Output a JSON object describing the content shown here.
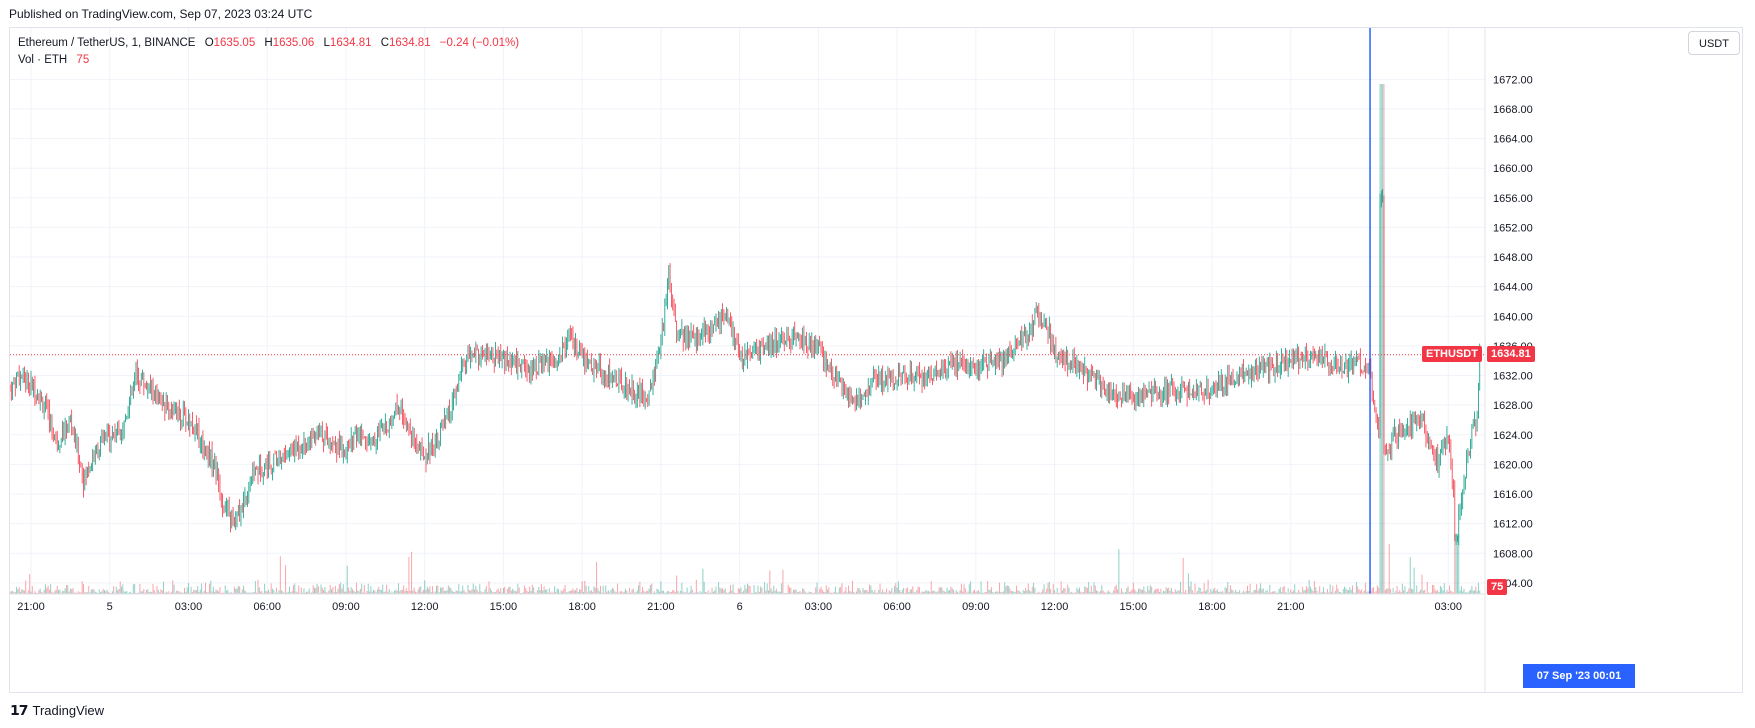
{
  "header": {
    "published": "Published on TradingView.com, Sep 07, 2023 03:24 UTC"
  },
  "legend": {
    "symbol": "Ethereum / TetherUS, 1, BINANCE",
    "o_label": "O",
    "o_value": "1635.05",
    "h_label": "H",
    "h_value": "1635.06",
    "l_label": "L",
    "l_value": "1634.81",
    "c_label": "C",
    "c_value": "1634.81",
    "change": "−0.24 (−0.01%)",
    "vol_label": "Vol · ETH",
    "vol_value": "75"
  },
  "toolbar": {
    "unit": "USDT"
  },
  "tags": {
    "symbol": "ETHUSDT",
    "last_price": "1634.81",
    "volume": "75",
    "crosshair_time": "07 Sep '23   00:01"
  },
  "footer": {
    "brand": "TradingView"
  },
  "colors": {
    "up": "#089981",
    "down": "#f23645",
    "crosshair": "#2962ff",
    "grid": "#f0f3fa"
  },
  "chart_data": {
    "type": "candlestick",
    "interval": "1 minute",
    "y_ticks": [
      "1672.00",
      "1668.00",
      "1664.00",
      "1660.00",
      "1656.00",
      "1652.00",
      "1648.00",
      "1644.00",
      "1640.00",
      "1636.00",
      "1632.00",
      "1628.00",
      "1624.00",
      "1620.00",
      "1616.00",
      "1612.00",
      "1608.00",
      "1604.00"
    ],
    "y_tick_values": [
      1672,
      1668,
      1664,
      1660,
      1656,
      1652,
      1648,
      1644,
      1640,
      1636,
      1632,
      1628,
      1624,
      1620,
      1616,
      1612,
      1608,
      1604
    ],
    "ylim": [
      1602.5,
      1676.5
    ],
    "x_ticks": [
      "21:00",
      "5",
      "03:00",
      "06:00",
      "09:00",
      "12:00",
      "15:00",
      "18:00",
      "21:00",
      "6",
      "03:00",
      "06:00",
      "09:00",
      "12:00",
      "15:00",
      "18:00",
      "21:00",
      "03:00"
    ],
    "x_tick_hours": [
      0,
      3,
      6,
      9,
      12,
      15,
      18,
      21,
      24,
      27,
      30,
      33,
      36,
      39,
      42,
      45,
      48,
      54
    ],
    "x_start": "2023-09-04 20:10",
    "xlim_hours": [
      -0.8,
      55.4
    ],
    "last_price": 1634.81,
    "crosshair_hour": 51.02,
    "price_path": [
      [
        -0.8,
        1630
      ],
      [
        -0.5,
        1632
      ],
      [
        0,
        1631
      ],
      [
        0.5,
        1628
      ],
      [
        1,
        1623
      ],
      [
        1.5,
        1626
      ],
      [
        2,
        1618
      ],
      [
        2.5,
        1622
      ],
      [
        3,
        1624
      ],
      [
        3.5,
        1625
      ],
      [
        4,
        1632
      ],
      [
        4.3,
        1631
      ],
      [
        5,
        1628
      ],
      [
        6,
        1626
      ],
      [
        6.5,
        1623
      ],
      [
        7,
        1620
      ],
      [
        7.3,
        1615
      ],
      [
        7.7,
        1612
      ],
      [
        8,
        1614
      ],
      [
        8.5,
        1619
      ],
      [
        9,
        1620
      ],
      [
        10,
        1622
      ],
      [
        11,
        1624
      ],
      [
        12,
        1622
      ],
      [
        12.5,
        1624
      ],
      [
        13,
        1623
      ],
      [
        13.5,
        1625
      ],
      [
        14,
        1628
      ],
      [
        14.5,
        1624
      ],
      [
        15,
        1621
      ],
      [
        15.5,
        1624
      ],
      [
        16,
        1627
      ],
      [
        16.5,
        1634
      ],
      [
        17,
        1635
      ],
      [
        18,
        1634
      ],
      [
        19,
        1633
      ],
      [
        20,
        1634
      ],
      [
        20.5,
        1637
      ],
      [
        21,
        1634
      ],
      [
        22,
        1632
      ],
      [
        23,
        1630
      ],
      [
        23.5,
        1629
      ],
      [
        24,
        1636
      ],
      [
        24.3,
        1646
      ],
      [
        24.6,
        1638
      ],
      [
        25,
        1637
      ],
      [
        26,
        1638
      ],
      [
        26.5,
        1641
      ],
      [
        27,
        1634
      ],
      [
        28,
        1636
      ],
      [
        29,
        1637
      ],
      [
        30,
        1636
      ],
      [
        30.5,
        1632
      ],
      [
        31,
        1630
      ],
      [
        31.5,
        1628
      ],
      [
        32,
        1631
      ],
      [
        33,
        1632
      ],
      [
        34,
        1632
      ],
      [
        35,
        1633
      ],
      [
        35.5,
        1634
      ],
      [
        36,
        1633
      ],
      [
        37,
        1634
      ],
      [
        37.5,
        1636
      ],
      [
        38,
        1638
      ],
      [
        38.3,
        1640
      ],
      [
        38.7,
        1639
      ],
      [
        39,
        1635
      ],
      [
        40,
        1633
      ],
      [
        41,
        1630
      ],
      [
        42,
        1629
      ],
      [
        43,
        1630
      ],
      [
        44,
        1630
      ],
      [
        45,
        1630
      ],
      [
        46,
        1632
      ],
      [
        47,
        1633
      ],
      [
        48,
        1634
      ],
      [
        49,
        1635
      ],
      [
        49.5,
        1634
      ],
      [
        50,
        1633
      ],
      [
        50.5,
        1634
      ],
      [
        51,
        1632
      ],
      [
        51.3,
        1626
      ],
      [
        51.6,
        1622
      ],
      [
        52,
        1624
      ],
      [
        52.5,
        1625
      ],
      [
        53,
        1626
      ],
      [
        53.3,
        1622
      ],
      [
        53.6,
        1620
      ],
      [
        54,
        1624
      ],
      [
        54.3,
        1612
      ],
      [
        54.6,
        1618
      ],
      [
        54.9,
        1624
      ],
      [
        55.1,
        1626
      ],
      [
        55.2,
        1636
      ]
    ]
  }
}
